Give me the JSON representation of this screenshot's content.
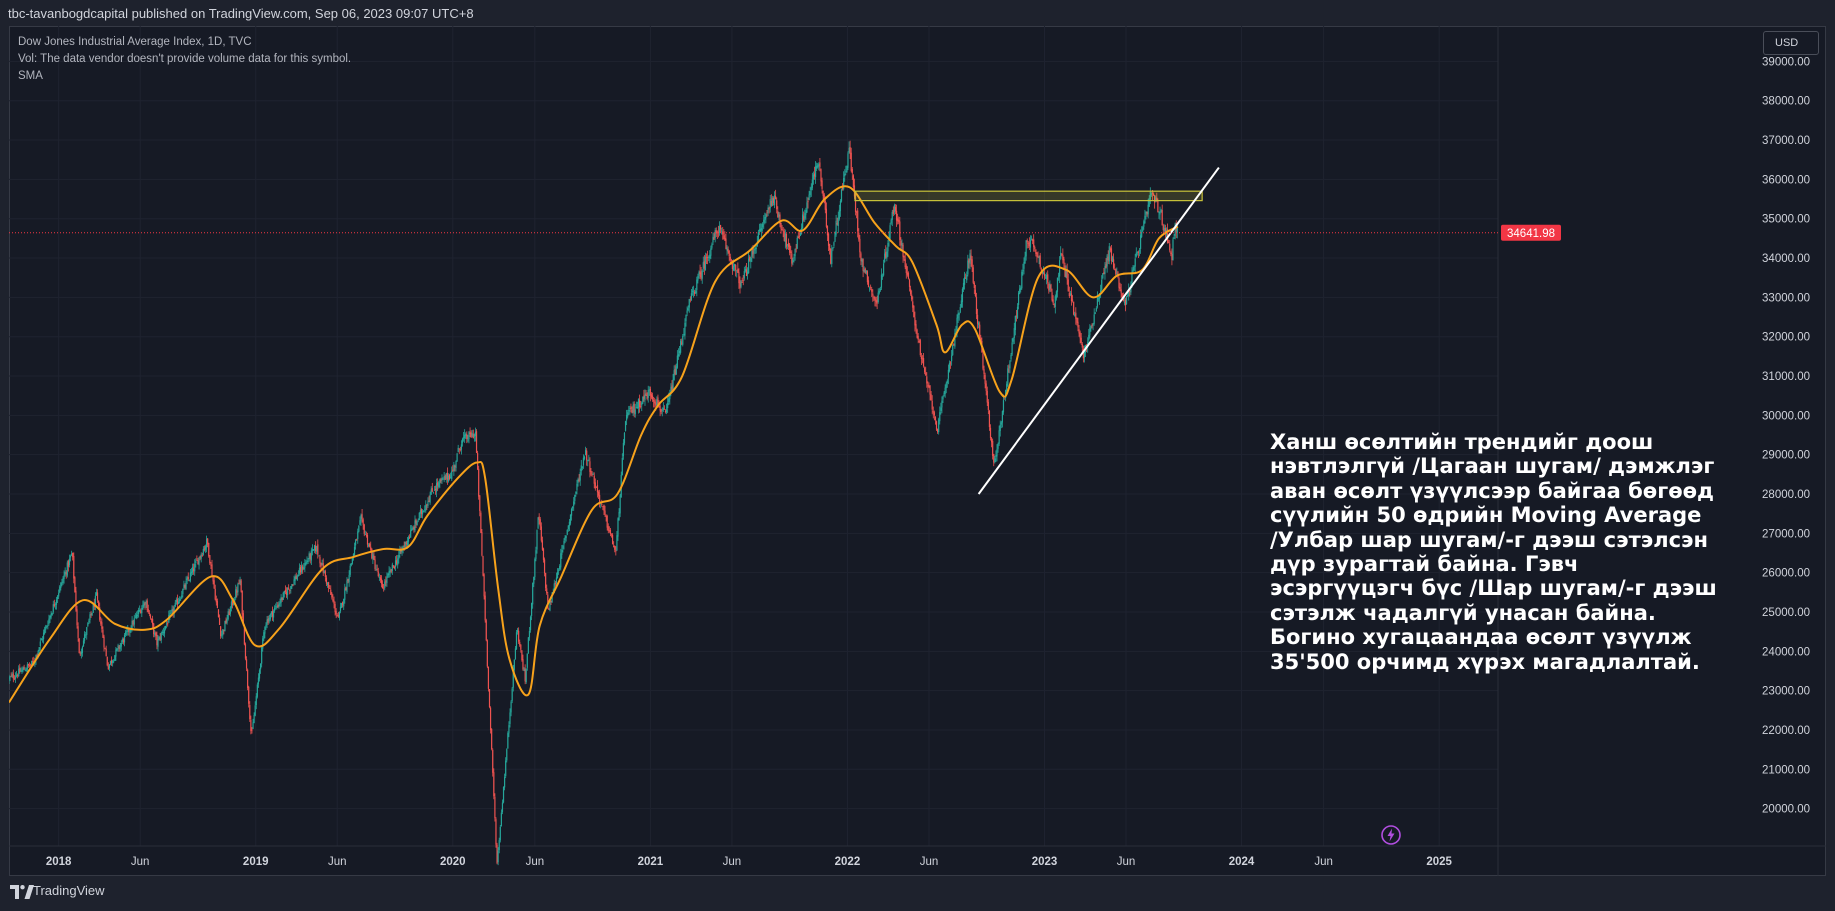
{
  "header": {
    "published_line": "tbc-tavanbogdcapital published on TradingView.com, Sep 06, 2023 09:07 UTC+8"
  },
  "legend": {
    "symbol": "Dow Jones Industrial Average Index, 1D, TVC",
    "volume_note": "Vol: The data vendor doesn't provide volume data for this symbol.",
    "indicator": "SMA"
  },
  "currency_button": "USD",
  "price_badge": "34641.98",
  "annotation": "Ханш өсөлтийн трендийг доош\nнэвтлэлгүй /Цагаан шугам/ дэмжлэг\nаван өсөлт үзүүлсээр байгаа бөгөөд\nсүүлийн 50 өдрийн Moving Average\n/Улбар шар шугам/-г дээш сэтэлсэн\nдүр зурагтай байна. Гэвч\nэсэргүүцэгч бүс /Шар шугам/-г дээш\nсэтэлж чадалгүй унасан байна.\nБогино хугацаандаа өсөлт үзүүлж\n35'500 орчимд хүрэх магадлалтай.",
  "footer": {
    "brand": "TradingView"
  },
  "colors": {
    "background": "#161a25",
    "grid": "#1f2330",
    "up": "#26a69a",
    "down": "#ef5350",
    "sma": "#f7a21b",
    "resistance_zone": "#c9c23a",
    "trendline": "#ffffff",
    "last_price": "#f23645"
  },
  "chart_data": {
    "type": "candlestick",
    "title": "Dow Jones Industrial Average Index, 1D, TVC",
    "y_axis": {
      "ticks": [
        39000,
        38000,
        37000,
        36000,
        35000,
        34000,
        33000,
        32000,
        31000,
        30000,
        29000,
        28000,
        27000,
        26000,
        25000,
        24000,
        23000,
        22000,
        21000,
        20000
      ],
      "tick_labels": [
        "39000.00",
        "38000.00",
        "37000.00",
        "36000.00",
        "35000.00",
        "34000.00",
        "33000.00",
        "32000.00",
        "31000.00",
        "30000.00",
        "29000.00",
        "28000.00",
        "27000.00",
        "26000.00",
        "25000.00",
        "24000.00",
        "23000.00",
        "22000.00",
        "21000.00",
        "20000.00"
      ],
      "range": [
        19050,
        39900
      ]
    },
    "x_axis": {
      "range": [
        "2017-10-01",
        "2025-04-20"
      ],
      "ticks": [
        {
          "date": "2018-01-01",
          "label": "2018",
          "major": true
        },
        {
          "date": "2018-06-01",
          "label": "Jun",
          "major": false
        },
        {
          "date": "2019-01-01",
          "label": "2019",
          "major": true
        },
        {
          "date": "2019-06-01",
          "label": "Jun",
          "major": false
        },
        {
          "date": "2020-01-01",
          "label": "2020",
          "major": true
        },
        {
          "date": "2020-06-01",
          "label": "Jun",
          "major": false
        },
        {
          "date": "2021-01-01",
          "label": "2021",
          "major": true
        },
        {
          "date": "2021-06-01",
          "label": "Jun",
          "major": false
        },
        {
          "date": "2022-01-01",
          "label": "2022",
          "major": true
        },
        {
          "date": "2022-06-01",
          "label": "Jun",
          "major": false
        },
        {
          "date": "2023-01-01",
          "label": "2023",
          "major": true
        },
        {
          "date": "2023-06-01",
          "label": "Jun",
          "major": false
        },
        {
          "date": "2024-01-01",
          "label": "2024",
          "major": true
        },
        {
          "date": "2024-06-01",
          "label": "Jun",
          "major": false
        },
        {
          "date": "2025-01-01",
          "label": "2025",
          "major": true
        }
      ]
    },
    "price_path": [
      [
        "2017-10-01",
        23300
      ],
      [
        "2017-11-15",
        23700
      ],
      [
        "2018-01-26",
        26500
      ],
      [
        "2018-02-08",
        23900
      ],
      [
        "2018-03-12",
        25400
      ],
      [
        "2018-04-02",
        23600
      ],
      [
        "2018-06-11",
        25300
      ],
      [
        "2018-07-02",
        24200
      ],
      [
        "2018-10-03",
        26800
      ],
      [
        "2018-10-29",
        24400
      ],
      [
        "2018-12-03",
        25800
      ],
      [
        "2018-12-24",
        21800
      ],
      [
        "2019-01-18",
        24700
      ],
      [
        "2019-04-23",
        26650
      ],
      [
        "2019-06-03",
        24800
      ],
      [
        "2019-07-15",
        27350
      ],
      [
        "2019-08-23",
        25600
      ],
      [
        "2019-11-27",
        28150
      ],
      [
        "2019-12-31",
        28550
      ],
      [
        "2020-01-17",
        29350
      ],
      [
        "2020-02-12",
        29550
      ],
      [
        "2020-02-28",
        25400
      ],
      [
        "2020-03-23",
        18600
      ],
      [
        "2020-04-29",
        24600
      ],
      [
        "2020-05-14",
        23250
      ],
      [
        "2020-06-08",
        27500
      ],
      [
        "2020-06-26",
        25000
      ],
      [
        "2020-09-02",
        29100
      ],
      [
        "2020-10-29",
        26500
      ],
      [
        "2020-11-16",
        29950
      ],
      [
        "2020-12-31",
        30600
      ],
      [
        "2021-01-29",
        29980
      ],
      [
        "2021-03-15",
        32900
      ],
      [
        "2021-05-07",
        34780
      ],
      [
        "2021-06-18",
        33300
      ],
      [
        "2021-08-16",
        35600
      ],
      [
        "2021-09-20",
        33900
      ],
      [
        "2021-11-08",
        36500
      ],
      [
        "2021-12-01",
        34000
      ],
      [
        "2022-01-04",
        36800
      ],
      [
        "2022-01-27",
        33900
      ],
      [
        "2022-02-24",
        32800
      ],
      [
        "2022-03-29",
        35400
      ],
      [
        "2022-05-20",
        31300
      ],
      [
        "2022-06-17",
        29650
      ],
      [
        "2022-08-16",
        34150
      ],
      [
        "2022-09-30",
        28700
      ],
      [
        "2022-11-30",
        34500
      ],
      [
        "2022-12-13",
        34300
      ],
      [
        "2023-01-19",
        32900
      ],
      [
        "2023-02-01",
        34100
      ],
      [
        "2023-03-15",
        31500
      ],
      [
        "2023-05-01",
        34200
      ],
      [
        "2023-05-31",
        32800
      ],
      [
        "2023-07-18",
        35650
      ],
      [
        "2023-08-04",
        35100
      ],
      [
        "2023-08-25",
        34100
      ],
      [
        "2023-08-31",
        34900
      ],
      [
        "2023-09-05",
        34642
      ]
    ],
    "sma_50": [
      [
        "2017-10-01",
        22700
      ],
      [
        "2017-12-15",
        24300
      ],
      [
        "2018-02-15",
        25300
      ],
      [
        "2018-04-15",
        24700
      ],
      [
        "2018-06-10",
        24550
      ],
      [
        "2018-07-20",
        24800
      ],
      [
        "2018-10-10",
        25900
      ],
      [
        "2018-11-20",
        25300
      ],
      [
        "2018-12-31",
        24150
      ],
      [
        "2019-02-15",
        24600
      ],
      [
        "2019-05-05",
        26100
      ],
      [
        "2019-07-01",
        26400
      ],
      [
        "2019-08-25",
        26600
      ],
      [
        "2019-10-10",
        26650
      ],
      [
        "2019-11-15",
        27450
      ],
      [
        "2020-01-10",
        28400
      ],
      [
        "2020-02-15",
        28800
      ],
      [
        "2020-03-01",
        28400
      ],
      [
        "2020-03-25",
        25600
      ],
      [
        "2020-04-15",
        23800
      ],
      [
        "2020-05-20",
        22900
      ],
      [
        "2020-06-10",
        24650
      ],
      [
        "2020-07-20",
        25900
      ],
      [
        "2020-09-15",
        27600
      ],
      [
        "2020-11-01",
        28000
      ],
      [
        "2020-12-15",
        29500
      ],
      [
        "2021-01-15",
        30250
      ],
      [
        "2021-03-01",
        31000
      ],
      [
        "2021-05-01",
        33400
      ],
      [
        "2021-07-05",
        34200
      ],
      [
        "2021-09-01",
        34950
      ],
      [
        "2021-10-10",
        34700
      ],
      [
        "2021-11-20",
        35500
      ],
      [
        "2022-01-05",
        35800
      ],
      [
        "2022-02-20",
        34900
      ],
      [
        "2022-04-01",
        34300
      ],
      [
        "2022-05-01",
        33900
      ],
      [
        "2022-06-15",
        32300
      ],
      [
        "2022-07-01",
        31600
      ],
      [
        "2022-08-01",
        32300
      ],
      [
        "2022-08-25",
        32200
      ],
      [
        "2022-10-10",
        30600
      ],
      [
        "2022-11-01",
        30900
      ],
      [
        "2022-12-20",
        33500
      ],
      [
        "2023-02-10",
        33700
      ],
      [
        "2023-04-01",
        33000
      ],
      [
        "2023-05-15",
        33550
      ],
      [
        "2023-07-01",
        33700
      ],
      [
        "2023-08-01",
        34500
      ],
      [
        "2023-09-05",
        34800
      ]
    ],
    "resistance_zone": {
      "start": "2022-01-15",
      "end": "2023-10-20",
      "low": 35460,
      "high": 35700
    },
    "trendline": {
      "start": [
        "2022-09-01",
        28000
      ],
      "end": [
        "2023-11-20",
        36300
      ]
    },
    "last_price": 34641.98
  }
}
